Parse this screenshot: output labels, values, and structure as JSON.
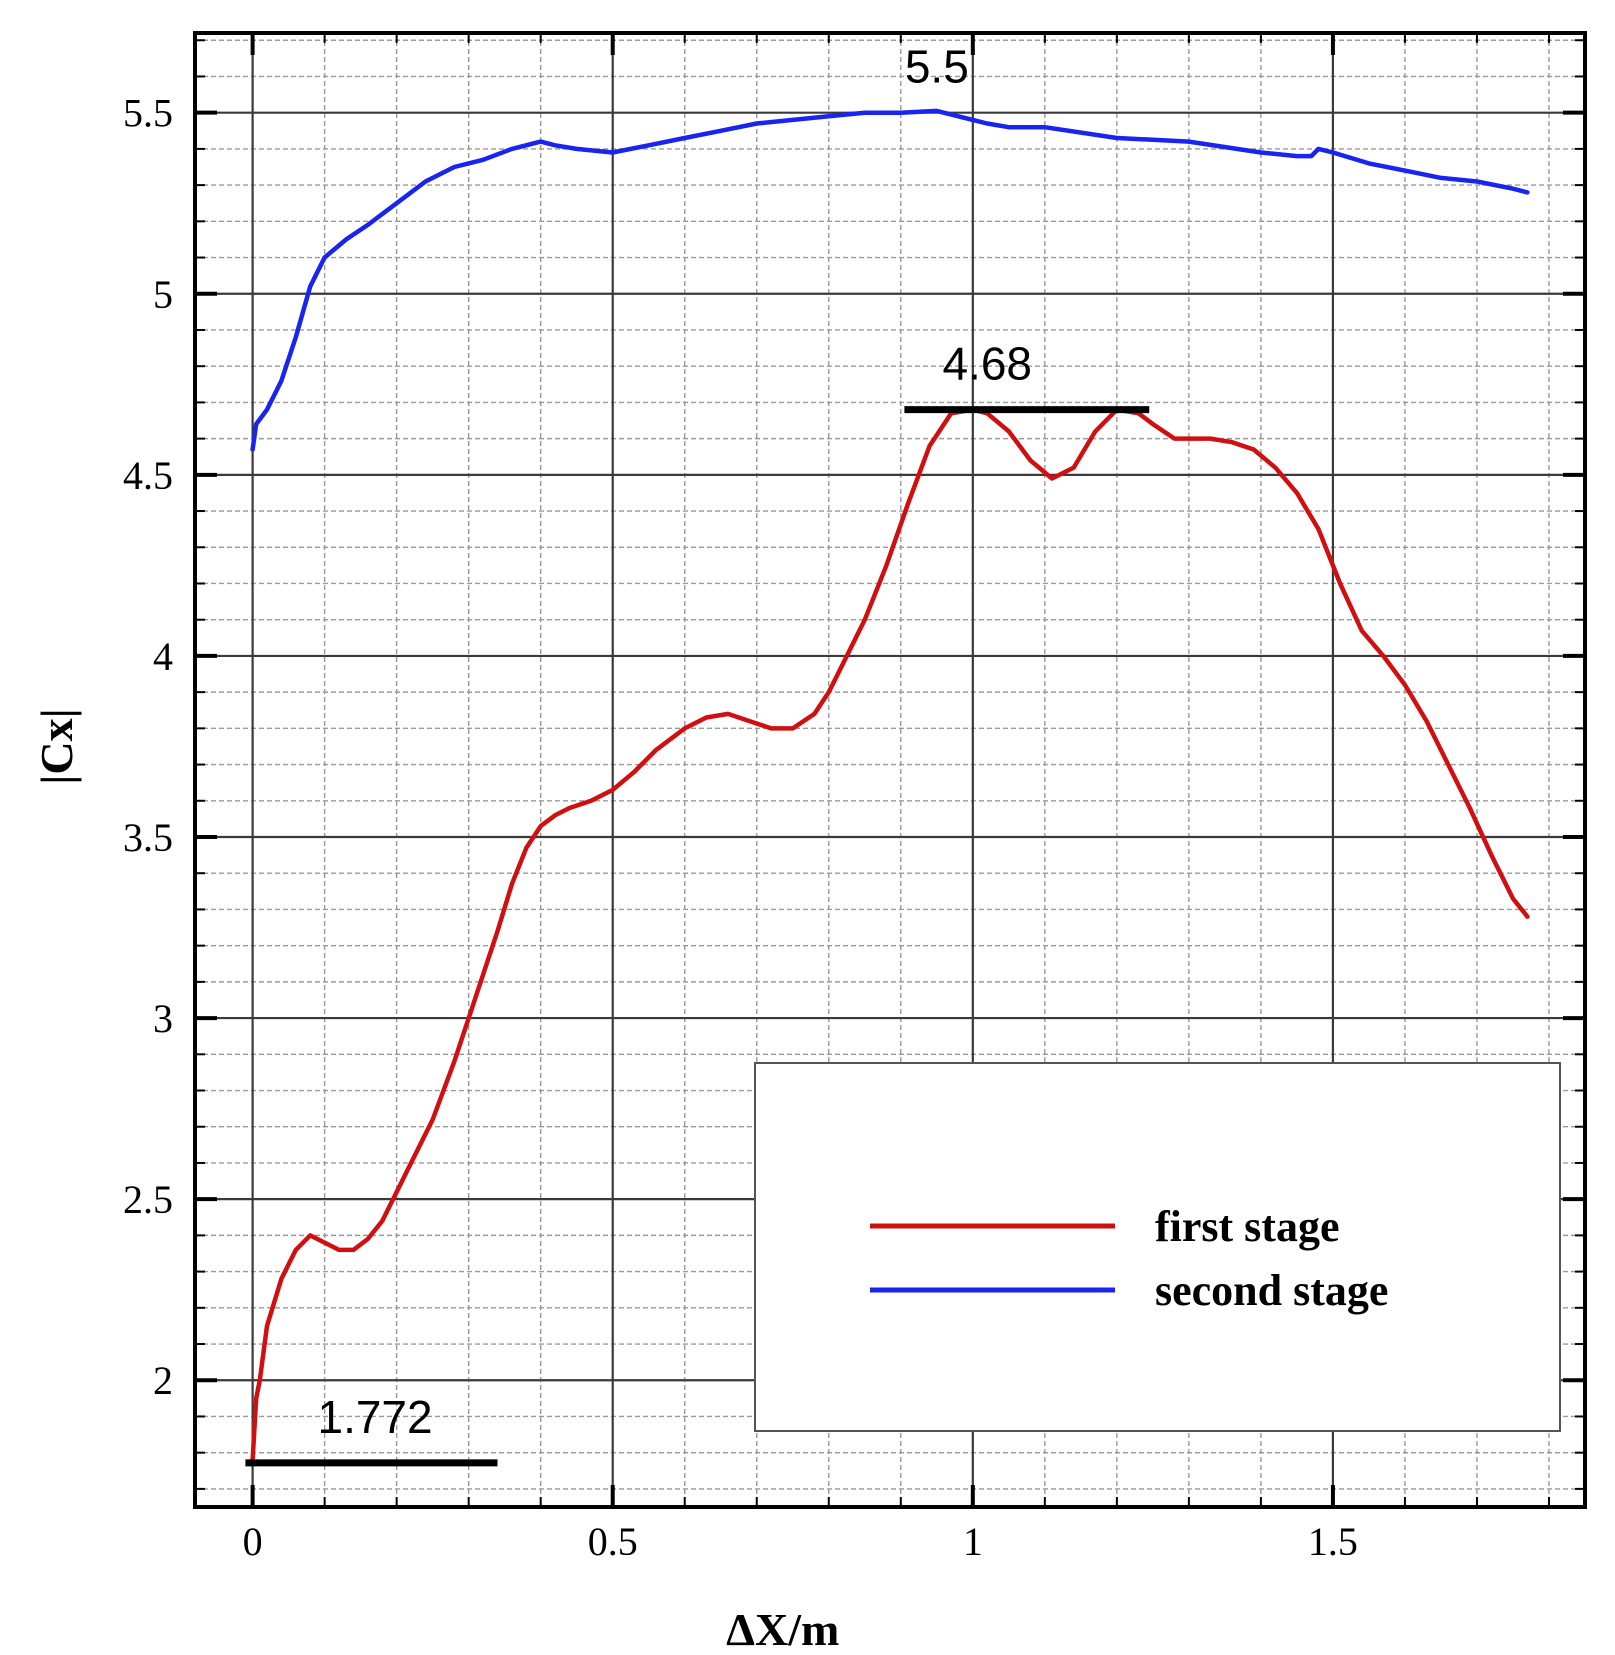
{
  "chart_data": {
    "type": "line",
    "xlabel": "ΔX/m",
    "ylabel": "|Cx|",
    "xlim": [
      -0.08,
      1.85
    ],
    "ylim": [
      1.65,
      5.72
    ],
    "x_ticks": [
      0,
      0.5,
      1,
      1.5
    ],
    "x_tick_labels": [
      "0",
      "0.5",
      "1",
      "1.5"
    ],
    "y_ticks": [
      2,
      2.5,
      3,
      3.5,
      4,
      4.5,
      5,
      5.5
    ],
    "y_tick_labels": [
      "2",
      "2.5",
      "3",
      "3.5",
      "4",
      "4.5",
      "5",
      "5.5"
    ],
    "x_minor_step": 0.1,
    "y_minor_step": 0.1,
    "grid": true,
    "legend_position": "bottom-right",
    "series": [
      {
        "name": "first stage",
        "color": "#d01010",
        "x": [
          0,
          0.005,
          0.01,
          0.02,
          0.04,
          0.06,
          0.08,
          0.1,
          0.12,
          0.14,
          0.16,
          0.18,
          0.2,
          0.22,
          0.25,
          0.28,
          0.3,
          0.32,
          0.34,
          0.36,
          0.38,
          0.4,
          0.42,
          0.44,
          0.47,
          0.5,
          0.53,
          0.56,
          0.6,
          0.63,
          0.66,
          0.69,
          0.72,
          0.75,
          0.78,
          0.8,
          0.82,
          0.85,
          0.88,
          0.91,
          0.94,
          0.97,
          1.0,
          1.02,
          1.05,
          1.08,
          1.11,
          1.14,
          1.17,
          1.2,
          1.23,
          1.25,
          1.28,
          1.3,
          1.33,
          1.36,
          1.39,
          1.42,
          1.45,
          1.48,
          1.51,
          1.54,
          1.57,
          1.6,
          1.63,
          1.66,
          1.69,
          1.72,
          1.75,
          1.77
        ],
        "y": [
          1.78,
          1.95,
          2.0,
          2.15,
          2.28,
          2.36,
          2.4,
          2.38,
          2.36,
          2.36,
          2.39,
          2.44,
          2.52,
          2.6,
          2.72,
          2.88,
          3.0,
          3.12,
          3.24,
          3.37,
          3.47,
          3.53,
          3.56,
          3.58,
          3.6,
          3.63,
          3.68,
          3.74,
          3.8,
          3.83,
          3.84,
          3.82,
          3.8,
          3.8,
          3.84,
          3.9,
          3.98,
          4.1,
          4.25,
          4.42,
          4.58,
          4.67,
          4.68,
          4.67,
          4.62,
          4.54,
          4.49,
          4.52,
          4.62,
          4.68,
          4.67,
          4.64,
          4.6,
          4.6,
          4.6,
          4.59,
          4.57,
          4.52,
          4.45,
          4.35,
          4.2,
          4.07,
          4.0,
          3.92,
          3.82,
          3.7,
          3.58,
          3.45,
          3.33,
          3.28
        ]
      },
      {
        "name": "second stage",
        "color": "#1a24f0",
        "x": [
          0,
          0.005,
          0.02,
          0.04,
          0.06,
          0.08,
          0.1,
          0.13,
          0.16,
          0.2,
          0.24,
          0.28,
          0.32,
          0.36,
          0.4,
          0.42,
          0.45,
          0.5,
          0.55,
          0.6,
          0.65,
          0.7,
          0.75,
          0.8,
          0.85,
          0.9,
          0.95,
          1.0,
          1.02,
          1.05,
          1.1,
          1.2,
          1.3,
          1.4,
          1.45,
          1.47,
          1.48,
          1.5,
          1.55,
          1.6,
          1.65,
          1.7,
          1.75,
          1.77
        ],
        "y": [
          4.57,
          4.64,
          4.68,
          4.76,
          4.88,
          5.02,
          5.1,
          5.15,
          5.19,
          5.25,
          5.31,
          5.35,
          5.37,
          5.4,
          5.42,
          5.41,
          5.4,
          5.39,
          5.41,
          5.43,
          5.45,
          5.47,
          5.48,
          5.49,
          5.5,
          5.5,
          5.505,
          5.48,
          5.47,
          5.46,
          5.46,
          5.43,
          5.42,
          5.39,
          5.38,
          5.38,
          5.4,
          5.39,
          5.36,
          5.34,
          5.32,
          5.31,
          5.29,
          5.28
        ]
      }
    ],
    "annotations": [
      {
        "label": "5.5",
        "x": 0.95,
        "y": 5.5
      },
      {
        "label": "4.68",
        "x": 1.02,
        "y": 4.68,
        "bar_x": [
          0.905,
          1.245
        ]
      },
      {
        "label": "1.772",
        "x": 0.17,
        "y": 1.772,
        "bar_x": [
          -0.01,
          0.34
        ]
      }
    ]
  }
}
